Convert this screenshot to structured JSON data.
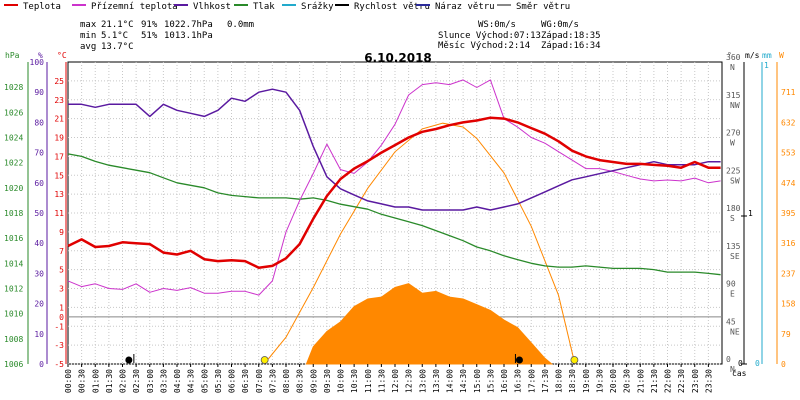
{
  "legend": [
    {
      "label": "Teplota",
      "color": "#e00000"
    },
    {
      "label": "Přízemní teplota",
      "color": "#cc33cc"
    },
    {
      "label": "Vlhkost",
      "color": "#5a1aa0"
    },
    {
      "label": "Tlak",
      "color": "#2a8a2a"
    },
    {
      "label": "Srážky",
      "color": "#22aacc"
    },
    {
      "label": "Rychlost větru",
      "color": "#000000"
    },
    {
      "label": "Náraz větru",
      "color": "#2a2a9a"
    },
    {
      "label": "Směr větru",
      "color": "#888888"
    }
  ],
  "stats": {
    "max_label": "max",
    "max_temp": "21.1°C",
    "max_hum": "91%",
    "max_pres": "1022.7hPa",
    "max_rain": "0.0mm",
    "min_label": "min",
    "min_temp": "5.1°C",
    "min_hum": "51%",
    "min_pres": "1013.1hPa",
    "avg_label": "avg",
    "avg_temp": "13.7°C"
  },
  "info": {
    "ws": "WS:0m/s",
    "wg": "WG:0m/s",
    "sun_rise": "Slunce Východ:07:13",
    "sun_set": "Západ:18:35",
    "moon_rise": "Měsíc  Východ:2:14",
    "moon_set": "Západ:16:34"
  },
  "axis_units": {
    "hpa": "hPa",
    "pct": "%",
    "temp": "°C",
    "deg": "°",
    "ms": "m/s",
    "mm": "mm",
    "w": "W",
    "time": "čas"
  },
  "chart_data": {
    "type": "line",
    "title": "6.10.2018",
    "x_ticks": [
      "00:00",
      "00:30",
      "01:00",
      "01:30",
      "02:00",
      "02:30",
      "03:00",
      "03:30",
      "04:00",
      "04:30",
      "05:00",
      "05:30",
      "06:00",
      "06:30",
      "07:00",
      "07:30",
      "08:00",
      "08:30",
      "09:00",
      "09:30",
      "10:00",
      "10:30",
      "11:00",
      "11:30",
      "12:00",
      "12:30",
      "13:00",
      "13:30",
      "14:00",
      "14:30",
      "15:00",
      "15:30",
      "16:00",
      "16:30",
      "17:00",
      "17:30",
      "18:00",
      "18:30",
      "19:00",
      "19:30",
      "20:00",
      "20:30",
      "21:00",
      "21:30",
      "22:00",
      "22:30",
      "23:00",
      "23:30"
    ],
    "axes": {
      "temp": {
        "ticks": [
          -5,
          -3,
          -1,
          0,
          1,
          3,
          5,
          7,
          9,
          11,
          13,
          15,
          17,
          19,
          21,
          23,
          25
        ],
        "range": [
          -5,
          27
        ]
      },
      "humidity": {
        "ticks": [
          0,
          10,
          20,
          30,
          40,
          50,
          60,
          70,
          80,
          90,
          100
        ],
        "range": [
          0,
          100
        ]
      },
      "pressure": {
        "ticks": [
          1006,
          1008,
          1010,
          1012,
          1014,
          1016,
          1018,
          1020,
          1022,
          1024,
          1026,
          1028
        ],
        "range": [
          1006,
          1030
        ]
      },
      "direction": {
        "ticks": [
          "0 N",
          "45 NE",
          "90 E",
          "135 SE",
          "180 S",
          "225 SW",
          "270 W",
          "315 NW",
          "360 N"
        ],
        "range": [
          0,
          360
        ]
      },
      "wind": {
        "ticks": [
          "0",
          "1"
        ],
        "range": [
          0,
          1
        ]
      },
      "rain": {
        "ticks": [
          "0",
          "1"
        ],
        "range": [
          0,
          1
        ]
      },
      "solar": {
        "ticks": [
          0,
          79,
          158,
          237,
          316,
          395,
          474,
          553,
          632,
          711
        ],
        "range": [
          0,
          790
        ]
      }
    },
    "series": [
      {
        "name": "Teplota",
        "axis": "temp",
        "points": [
          [
            0,
            7.5
          ],
          [
            0.5,
            8.2
          ],
          [
            1,
            7.4
          ],
          [
            1.5,
            7.5
          ],
          [
            2,
            7.9
          ],
          [
            2.5,
            7.8
          ],
          [
            3,
            7.7
          ],
          [
            3.5,
            6.8
          ],
          [
            4,
            6.6
          ],
          [
            4.5,
            7.0
          ],
          [
            5,
            6.1
          ],
          [
            5.5,
            5.9
          ],
          [
            6,
            6.0
          ],
          [
            6.5,
            5.9
          ],
          [
            7,
            5.2
          ],
          [
            7.5,
            5.4
          ],
          [
            8,
            6.2
          ],
          [
            8.5,
            7.7
          ],
          [
            9,
            10.4
          ],
          [
            9.5,
            12.8
          ],
          [
            10,
            14.6
          ],
          [
            10.5,
            15.7
          ],
          [
            11,
            16.5
          ],
          [
            11.5,
            17.4
          ],
          [
            12,
            18.2
          ],
          [
            12.5,
            19.0
          ],
          [
            13,
            19.6
          ],
          [
            13.5,
            19.9
          ],
          [
            14,
            20.3
          ],
          [
            14.5,
            20.6
          ],
          [
            15,
            20.8
          ],
          [
            15.5,
            21.1
          ],
          [
            16,
            21.0
          ],
          [
            16.5,
            20.6
          ],
          [
            17,
            20.0
          ],
          [
            17.5,
            19.4
          ],
          [
            18,
            18.6
          ],
          [
            18.5,
            17.6
          ],
          [
            19,
            17.0
          ],
          [
            19.5,
            16.6
          ],
          [
            20,
            16.4
          ],
          [
            20.5,
            16.2
          ],
          [
            21,
            16.2
          ],
          [
            21.5,
            16.1
          ],
          [
            22,
            16.0
          ],
          [
            22.5,
            15.8
          ],
          [
            23,
            16.4
          ],
          [
            23.5,
            15.8
          ],
          [
            23.95,
            15.8
          ]
        ]
      },
      {
        "name": "Přízemní teplota",
        "axis": "temp",
        "points": [
          [
            0,
            3.8
          ],
          [
            0.5,
            3.2
          ],
          [
            1,
            3.5
          ],
          [
            1.5,
            3.0
          ],
          [
            2,
            2.9
          ],
          [
            2.5,
            3.5
          ],
          [
            3,
            2.6
          ],
          [
            3.5,
            3.0
          ],
          [
            4,
            2.8
          ],
          [
            4.5,
            3.1
          ],
          [
            5,
            2.5
          ],
          [
            5.5,
            2.5
          ],
          [
            6,
            2.7
          ],
          [
            6.5,
            2.7
          ],
          [
            7,
            2.3
          ],
          [
            7.5,
            3.8
          ],
          [
            8,
            9.0
          ],
          [
            8.5,
            12.3
          ],
          [
            9,
            15.2
          ],
          [
            9.5,
            18.3
          ],
          [
            10,
            15.6
          ],
          [
            10.5,
            15.2
          ],
          [
            11,
            16.4
          ],
          [
            11.5,
            18.2
          ],
          [
            12,
            20.4
          ],
          [
            12.5,
            23.5
          ],
          [
            13,
            24.6
          ],
          [
            13.5,
            24.8
          ],
          [
            14,
            24.6
          ],
          [
            14.5,
            25.1
          ],
          [
            15,
            24.3
          ],
          [
            15.5,
            25.1
          ],
          [
            16,
            21.0
          ],
          [
            16.5,
            20.1
          ],
          [
            17,
            19.0
          ],
          [
            17.5,
            18.4
          ],
          [
            18,
            17.5
          ],
          [
            18.5,
            16.6
          ],
          [
            19,
            15.7
          ],
          [
            19.5,
            15.7
          ],
          [
            20,
            15.4
          ],
          [
            20.5,
            15.0
          ],
          [
            21,
            14.6
          ],
          [
            21.5,
            14.4
          ],
          [
            22,
            14.5
          ],
          [
            22.5,
            14.4
          ],
          [
            23,
            14.7
          ],
          [
            23.5,
            14.2
          ],
          [
            23.95,
            14.4
          ]
        ]
      },
      {
        "name": "Vlhkost",
        "axis": "humidity",
        "points": [
          [
            0,
            86
          ],
          [
            0.5,
            86
          ],
          [
            1,
            85
          ],
          [
            1.5,
            86
          ],
          [
            2,
            86
          ],
          [
            2.5,
            86
          ],
          [
            3,
            82
          ],
          [
            3.5,
            86
          ],
          [
            4,
            84
          ],
          [
            4.5,
            83
          ],
          [
            5,
            82
          ],
          [
            5.5,
            84
          ],
          [
            6,
            88
          ],
          [
            6.5,
            87
          ],
          [
            7,
            90
          ],
          [
            7.5,
            91
          ],
          [
            8,
            90
          ],
          [
            8.5,
            84
          ],
          [
            9,
            72
          ],
          [
            9.5,
            62
          ],
          [
            10,
            58
          ],
          [
            10.5,
            56
          ],
          [
            11,
            54
          ],
          [
            11.5,
            53
          ],
          [
            12,
            52
          ],
          [
            12.5,
            52
          ],
          [
            13,
            51
          ],
          [
            13.5,
            51
          ],
          [
            14,
            51
          ],
          [
            14.5,
            51
          ],
          [
            15,
            52
          ],
          [
            15.5,
            51
          ],
          [
            16,
            52
          ],
          [
            16.5,
            53
          ],
          [
            17,
            55
          ],
          [
            17.5,
            57
          ],
          [
            18,
            59
          ],
          [
            18.5,
            61
          ],
          [
            19,
            62
          ],
          [
            19.5,
            63
          ],
          [
            20,
            64
          ],
          [
            20.5,
            65
          ],
          [
            21,
            66
          ],
          [
            21.5,
            67
          ],
          [
            22,
            66
          ],
          [
            22.5,
            66
          ],
          [
            23,
            66
          ],
          [
            23.5,
            67
          ],
          [
            23.95,
            67
          ]
        ]
      },
      {
        "name": "Tlak",
        "axis": "pressure",
        "points": [
          [
            0,
            1022.7
          ],
          [
            0.5,
            1022.5
          ],
          [
            1,
            1022.1
          ],
          [
            1.5,
            1021.8
          ],
          [
            2,
            1021.6
          ],
          [
            2.5,
            1021.4
          ],
          [
            3,
            1021.2
          ],
          [
            3.5,
            1020.8
          ],
          [
            4,
            1020.4
          ],
          [
            4.5,
            1020.2
          ],
          [
            5,
            1020.0
          ],
          [
            5.5,
            1019.6
          ],
          [
            6,
            1019.4
          ],
          [
            6.5,
            1019.3
          ],
          [
            7,
            1019.2
          ],
          [
            7.5,
            1019.2
          ],
          [
            8,
            1019.2
          ],
          [
            8.5,
            1019.1
          ],
          [
            9,
            1019.2
          ],
          [
            9.5,
            1019.0
          ],
          [
            10,
            1018.7
          ],
          [
            10.5,
            1018.5
          ],
          [
            11,
            1018.3
          ],
          [
            11.5,
            1017.9
          ],
          [
            12,
            1017.6
          ],
          [
            12.5,
            1017.3
          ],
          [
            13,
            1017.0
          ],
          [
            13.5,
            1016.6
          ],
          [
            14,
            1016.2
          ],
          [
            14.5,
            1015.8
          ],
          [
            15,
            1015.3
          ],
          [
            15.5,
            1015.0
          ],
          [
            16,
            1014.6
          ],
          [
            16.5,
            1014.3
          ],
          [
            17,
            1014.0
          ],
          [
            17.5,
            1013.8
          ],
          [
            18,
            1013.7
          ],
          [
            18.5,
            1013.7
          ],
          [
            19,
            1013.8
          ],
          [
            19.5,
            1013.7
          ],
          [
            20,
            1013.6
          ],
          [
            20.5,
            1013.6
          ],
          [
            21,
            1013.6
          ],
          [
            21.5,
            1013.5
          ],
          [
            22,
            1013.3
          ],
          [
            22.5,
            1013.3
          ],
          [
            23,
            1013.3
          ],
          [
            23.5,
            1013.2
          ],
          [
            23.95,
            1013.1
          ]
        ]
      },
      {
        "name": "Sluneční záření",
        "axis": "solar",
        "points": [
          [
            8.75,
            0
          ],
          [
            9,
            45
          ],
          [
            9.5,
            85
          ],
          [
            10,
            110
          ],
          [
            10.5,
            150
          ],
          [
            11,
            170
          ],
          [
            11.5,
            175
          ],
          [
            12,
            200
          ],
          [
            12.5,
            210
          ],
          [
            13,
            185
          ],
          [
            13.5,
            190
          ],
          [
            14,
            175
          ],
          [
            14.5,
            170
          ],
          [
            15,
            155
          ],
          [
            15.5,
            140
          ],
          [
            16,
            115
          ],
          [
            16.5,
            95
          ],
          [
            17,
            55
          ],
          [
            17.5,
            15
          ],
          [
            17.75,
            0
          ]
        ]
      },
      {
        "name": "Teoretické záření",
        "axis": "solar",
        "points": [
          [
            7.2,
            0
          ],
          [
            8,
            70
          ],
          [
            9,
            200
          ],
          [
            10,
            340
          ],
          [
            11,
            460
          ],
          [
            12,
            555
          ],
          [
            13,
            615
          ],
          [
            13.75,
            630
          ],
          [
            14.5,
            620
          ],
          [
            15,
            590
          ],
          [
            16,
            500
          ],
          [
            17,
            360
          ],
          [
            18,
            180
          ],
          [
            18.6,
            0
          ]
        ]
      }
    ],
    "markers": {
      "sunrise": "07:13",
      "sunset": "18:35",
      "moonrise": "2:14",
      "moonset": "16:34"
    }
  }
}
